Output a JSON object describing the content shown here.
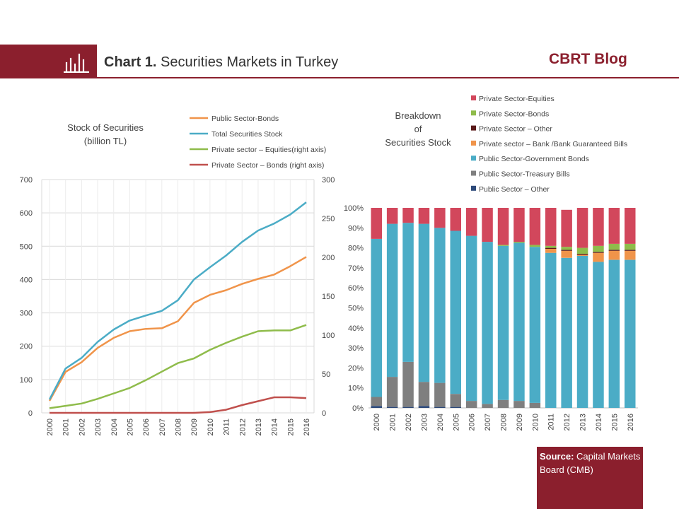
{
  "header": {
    "chart_number": "Chart 1.",
    "title": "Securities Markets in Turkey",
    "blog": "CBRT Blog"
  },
  "source": {
    "label": "Source:",
    "text": "Capital Markets Board (CMB)"
  },
  "colors": {
    "brand": "#8b1f2d",
    "public_bonds": "#f0944a",
    "total": "#4bacc6",
    "equities": "#8fbc4b",
    "private_bonds": "#c0504d",
    "eq_bar": "#d2475c",
    "pbonds_bar": "#8fbc4b",
    "priv_other": "#5a1a1a",
    "bank_bills": "#f0944a",
    "gov_bonds": "#4bacc6",
    "tbills": "#7f7f7f",
    "pub_other": "#2e4a7a"
  },
  "chart_data": [
    {
      "type": "line",
      "title": "Stock of Securities",
      "subtitle": "(billion TL)",
      "x": [
        "2000",
        "2001",
        "2002",
        "2003",
        "2004",
        "2005",
        "2006",
        "2007",
        "2008",
        "2009",
        "2010",
        "2011",
        "2012",
        "2013",
        "2014",
        "2015",
        "2016"
      ],
      "ylim": [
        0,
        700
      ],
      "yticks": [
        "0",
        "100",
        "200",
        "300",
        "400",
        "500",
        "600",
        "700"
      ],
      "y2lim": [
        0,
        300
      ],
      "y2ticks": [
        "0",
        "50",
        "100",
        "150",
        "200",
        "250",
        "300"
      ],
      "legend_position": "top",
      "series": [
        {
          "name": "Public Sector-Bonds",
          "axis": "left",
          "values": [
            36,
            123,
            152,
            195,
            225,
            245,
            252,
            254,
            275,
            330,
            354,
            368,
            387,
            402,
            415,
            440,
            468
          ]
        },
        {
          "name": "Total Securities Stock",
          "axis": "left",
          "values": [
            40,
            133,
            165,
            213,
            250,
            277,
            292,
            306,
            338,
            400,
            437,
            472,
            513,
            547,
            568,
            595,
            632
          ]
        },
        {
          "name": "Private sector – Equities(right axis)",
          "axis": "right",
          "values": [
            6,
            9,
            12,
            18,
            25,
            32,
            42,
            53,
            64,
            70,
            81,
            90,
            98,
            105,
            106,
            106,
            113
          ]
        },
        {
          "name": "Private Sector – Bonds  (right axis)",
          "axis": "right",
          "values": [
            0,
            0,
            0,
            0,
            0,
            0,
            0,
            0,
            0,
            0,
            1,
            4,
            10,
            15,
            20,
            20,
            19
          ]
        }
      ]
    },
    {
      "type": "bar",
      "stacked": true,
      "title": "Breakdown of Securities Stock",
      "title_lines": [
        "Breakdown",
        "of",
        "Securities Stock"
      ],
      "categories": [
        "2000",
        "2001",
        "2002",
        "2003",
        "2004",
        "2005",
        "2006",
        "2007",
        "2008",
        "2009",
        "2010",
        "2011",
        "2012",
        "2013",
        "2014",
        "2015",
        "2016"
      ],
      "ylim": [
        0,
        100
      ],
      "yticks": [
        "0%",
        "10%",
        "20%",
        "30%",
        "40%",
        "50%",
        "60%",
        "70%",
        "80%",
        "90%",
        "100%"
      ],
      "legend_position": "top",
      "series": [
        {
          "name": "Public Sector – Other",
          "values": [
            1,
            0.5,
            0.5,
            1,
            0.5,
            0.5,
            0,
            0,
            0,
            0,
            0,
            0,
            0,
            0,
            0,
            0,
            0
          ]
        },
        {
          "name": "Public Sector-Treasury Bills",
          "values": [
            4.5,
            15,
            22.5,
            12,
            12,
            6.5,
            3.5,
            2,
            4,
            3.5,
            2.5,
            0,
            0,
            0,
            0,
            0,
            0
          ]
        },
        {
          "name": "Public Sector-Government Bonds",
          "values": [
            79,
            76.5,
            69.5,
            79,
            77.5,
            81.5,
            82.5,
            81,
            77,
            79,
            78,
            77.5,
            75,
            76,
            73,
            74,
            74
          ]
        },
        {
          "name": "Private sector – Bank /Bank Guaranteed Bills",
          "values": [
            0,
            0,
            0,
            0,
            0,
            0,
            0,
            0,
            0,
            0,
            0,
            2,
            3.5,
            0.5,
            4.5,
            4.5,
            4.5
          ]
        },
        {
          "name": "Private Sector – Other",
          "values": [
            0,
            0,
            0,
            0,
            0,
            0,
            0,
            0,
            0,
            0,
            0,
            0.5,
            0.5,
            0.5,
            0.5,
            0.5,
            0.5
          ]
        },
        {
          "name": "Private Sector-Bonds",
          "values": [
            0,
            0,
            0,
            0,
            0,
            0,
            0,
            0,
            0.5,
            0.5,
            1,
            1,
            1.5,
            3,
            3,
            3,
            3
          ]
        },
        {
          "name": "Private Sector-Equities",
          "values": [
            15.5,
            8,
            7.5,
            8,
            10,
            11.5,
            14,
            17,
            18.5,
            17,
            18.5,
            19,
            18.5,
            20,
            19,
            18,
            18
          ]
        }
      ],
      "legend_order": [
        "Private Sector-Equities",
        "Private Sector-Bonds",
        "Private Sector – Other",
        "Private sector – Bank /Bank Guaranteed Bills",
        "Public Sector-Government Bonds",
        "Public Sector-Treasury Bills",
        "Public Sector – Other"
      ]
    }
  ]
}
